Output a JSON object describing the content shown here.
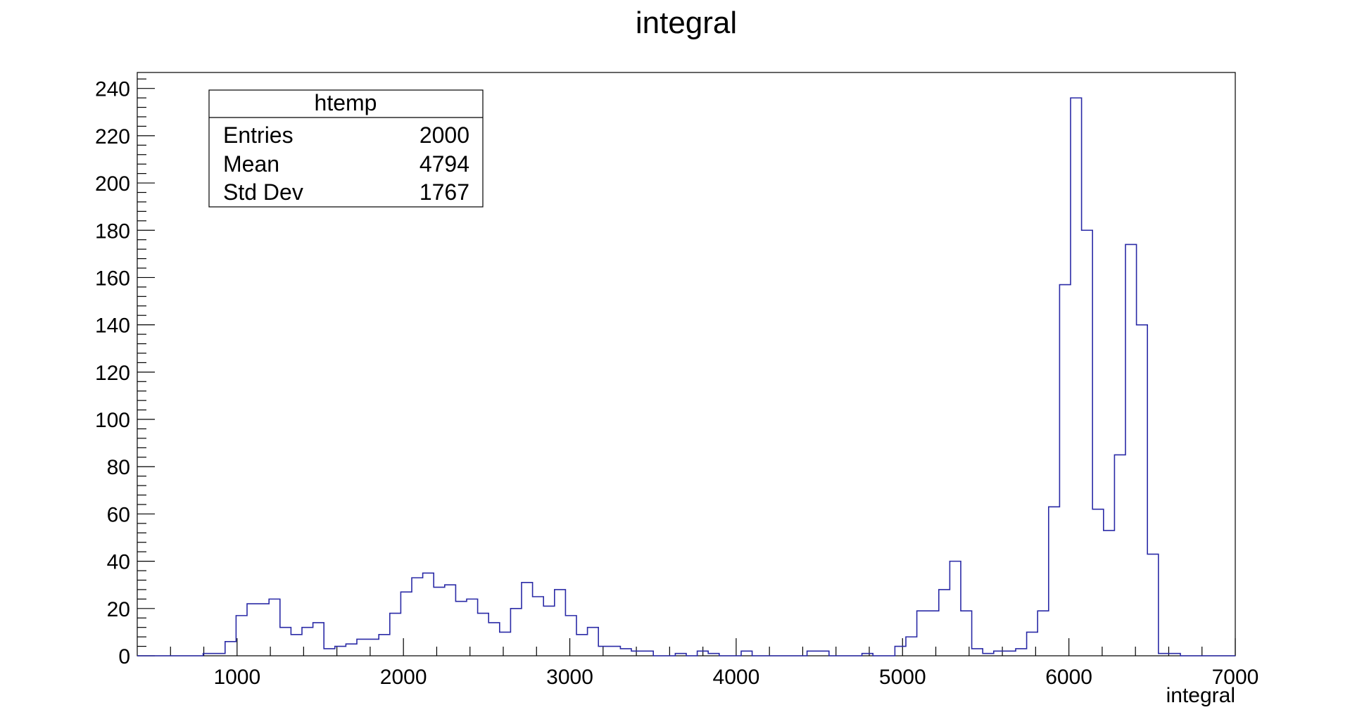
{
  "chart_data": {
    "type": "histogram",
    "title": "integral",
    "xlabel": "integral",
    "ylabel": "",
    "xlim": [
      400,
      7000
    ],
    "ylim": [
      0,
      246.75
    ],
    "x_ticks": [
      "1000",
      "2000",
      "3000",
      "4000",
      "5000",
      "6000",
      "7000"
    ],
    "y_ticks": [
      "0",
      "20",
      "40",
      "60",
      "80",
      "100",
      "120",
      "140",
      "160",
      "180",
      "200",
      "220",
      "240"
    ],
    "bins": {
      "start": 400,
      "width": 66,
      "counts": [
        0,
        0,
        0,
        0,
        0,
        0,
        1,
        1,
        6,
        17,
        22,
        22,
        24,
        12,
        9,
        12,
        14,
        3,
        4,
        5,
        7,
        7,
        9,
        18,
        27,
        33,
        35,
        29,
        30,
        23,
        24,
        18,
        14,
        10,
        20,
        31,
        25,
        21,
        28,
        17,
        9,
        12,
        4,
        4,
        3,
        2,
        2,
        0,
        0,
        1,
        0,
        2,
        1,
        0,
        0,
        2,
        0,
        0,
        0,
        0,
        0,
        2,
        2,
        0,
        0,
        0,
        1,
        0,
        0,
        4,
        8,
        19,
        19,
        28,
        40,
        19,
        3,
        1,
        2,
        2,
        3,
        10,
        19,
        63,
        157,
        236,
        180,
        62,
        53,
        85,
        174,
        140,
        43,
        1,
        1,
        0,
        0,
        0,
        0,
        0
      ]
    },
    "line_color": "#2a2aa6",
    "stats_box": {
      "title": "htemp",
      "rows": [
        {
          "label": "Entries",
          "value": "2000"
        },
        {
          "label": "Mean",
          "value": "4794"
        },
        {
          "label": "Std Dev",
          "value": "1767"
        }
      ]
    }
  }
}
